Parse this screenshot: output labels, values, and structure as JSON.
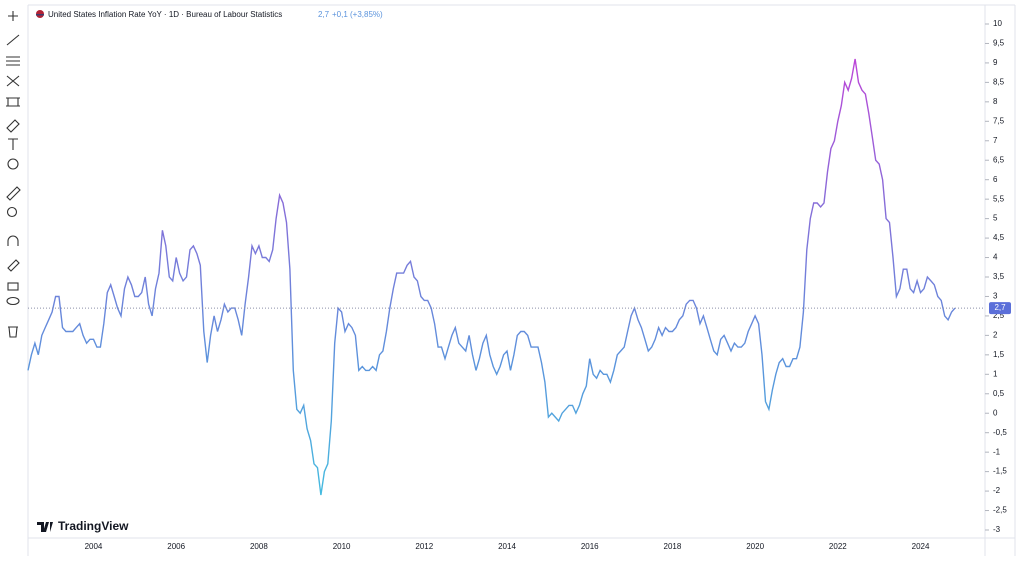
{
  "header": {
    "title": "United States Inflation Rate YoY · 1D · Bureau of Labour Statistics",
    "last": "2,7",
    "change": "+0,1 (+3,85%)"
  },
  "logo": "TradingView",
  "chart_data": {
    "type": "line",
    "categories": [
      null,
      null,
      null,
      null,
      null,
      null,
      null,
      null,
      null,
      null,
      null,
      null,
      null,
      null,
      null,
      null,
      null,
      null,
      null,
      "2004",
      null,
      null,
      null,
      null,
      null,
      null,
      null,
      null,
      null,
      null,
      null,
      null,
      null,
      null,
      null,
      null,
      null,
      null,
      null,
      null,
      null,
      null,
      null,
      "2006",
      null,
      null,
      null,
      null,
      null,
      null,
      null,
      null,
      null,
      null,
      null,
      null,
      null,
      null,
      null,
      null,
      null,
      null,
      null,
      null,
      null,
      null,
      null,
      "2008",
      null,
      null,
      null,
      null,
      null,
      null,
      null,
      null,
      null,
      null,
      null,
      null,
      null,
      null,
      null,
      null,
      null,
      null,
      null,
      null,
      null,
      null,
      null,
      "2010",
      null,
      null,
      null,
      null,
      null,
      null,
      null,
      null,
      null,
      null,
      null,
      null,
      null,
      null,
      null,
      null,
      null,
      null,
      null,
      null,
      null,
      null,
      null,
      "2012",
      null,
      null,
      null,
      null,
      null,
      null,
      null,
      null,
      null,
      null,
      null,
      null,
      null,
      null,
      null,
      null,
      null,
      null,
      null,
      null,
      null,
      null,
      null,
      "2014",
      null,
      null,
      null,
      null,
      null,
      null,
      null,
      null,
      null,
      null,
      null,
      null,
      null,
      null,
      null,
      null,
      null,
      null,
      null,
      null,
      null,
      null,
      null,
      "2016",
      null,
      null,
      null,
      null,
      null,
      null,
      null,
      null,
      null,
      null,
      null,
      null,
      null,
      null,
      null,
      null,
      null,
      null,
      null,
      null,
      null,
      null,
      null,
      "2018",
      null,
      null,
      null,
      null,
      null,
      null,
      null,
      null,
      null,
      null,
      null,
      null,
      null,
      null,
      null,
      null,
      null,
      null,
      null,
      null,
      null,
      null,
      null,
      "2020",
      null,
      null,
      null,
      null,
      null,
      null,
      null,
      null,
      null,
      null,
      null,
      null,
      null,
      null,
      null,
      null,
      null,
      null,
      null,
      null,
      null,
      null,
      null,
      "2022",
      null,
      null,
      null,
      null,
      null,
      null,
      null,
      null,
      null,
      null,
      null,
      null,
      null,
      null,
      null,
      null,
      null,
      null,
      null,
      null,
      null,
      null,
      null,
      "2024",
      null,
      null,
      null,
      null,
      null,
      null,
      null,
      null,
      null,
      null
    ],
    "values": [
      1.1,
      1.5,
      1.8,
      1.5,
      2.0,
      2.2,
      2.4,
      2.6,
      3.0,
      3.0,
      2.2,
      2.1,
      2.1,
      2.1,
      2.2,
      2.3,
      2.0,
      1.8,
      1.9,
      1.9,
      1.7,
      1.7,
      2.3,
      3.1,
      3.3,
      3.0,
      2.7,
      2.5,
      3.2,
      3.5,
      3.3,
      3.0,
      3.0,
      3.1,
      3.5,
      2.8,
      2.5,
      3.2,
      3.6,
      4.7,
      4.3,
      3.5,
      3.4,
      4.0,
      3.6,
      3.4,
      3.5,
      4.2,
      4.3,
      4.1,
      3.8,
      2.1,
      1.3,
      2.0,
      2.5,
      2.1,
      2.4,
      2.8,
      2.6,
      2.7,
      2.7,
      2.4,
      2.0,
      2.8,
      3.5,
      4.3,
      4.1,
      4.3,
      4.0,
      4.0,
      3.9,
      4.2,
      5.0,
      5.6,
      5.4,
      4.9,
      3.7,
      1.1,
      0.1,
      0.0,
      0.2,
      -0.4,
      -0.7,
      -1.3,
      -1.4,
      -2.1,
      -1.5,
      -1.3,
      -0.2,
      1.8,
      2.7,
      2.6,
      2.1,
      2.3,
      2.2,
      2.0,
      1.1,
      1.2,
      1.1,
      1.1,
      1.2,
      1.1,
      1.5,
      1.6,
      2.1,
      2.7,
      3.2,
      3.6,
      3.6,
      3.6,
      3.8,
      3.9,
      3.5,
      3.4,
      3.0,
      2.9,
      2.9,
      2.7,
      2.3,
      1.7,
      1.7,
      1.4,
      1.7,
      2.0,
      2.2,
      1.8,
      1.7,
      1.6,
      2.0,
      1.5,
      1.1,
      1.4,
      1.8,
      2.0,
      1.5,
      1.2,
      1.0,
      1.2,
      1.5,
      1.6,
      1.1,
      1.5,
      2.0,
      2.1,
      2.1,
      2.0,
      1.7,
      1.7,
      1.7,
      1.3,
      0.8,
      -0.1,
      0.0,
      -0.1,
      -0.2,
      0.0,
      0.1,
      0.2,
      0.2,
      0.0,
      0.2,
      0.5,
      0.7,
      1.4,
      1.0,
      0.9,
      1.1,
      1.0,
      1.0,
      0.8,
      1.1,
      1.5,
      1.6,
      1.7,
      2.1,
      2.5,
      2.7,
      2.4,
      2.2,
      1.9,
      1.6,
      1.7,
      1.9,
      2.2,
      2.0,
      2.2,
      2.1,
      2.1,
      2.2,
      2.4,
      2.5,
      2.8,
      2.9,
      2.9,
      2.7,
      2.3,
      2.5,
      2.2,
      1.9,
      1.6,
      1.5,
      1.9,
      2.0,
      1.8,
      1.6,
      1.8,
      1.7,
      1.7,
      1.8,
      2.1,
      2.3,
      2.5,
      2.3,
      1.5,
      0.3,
      0.1,
      0.6,
      1.0,
      1.3,
      1.4,
      1.2,
      1.2,
      1.4,
      1.4,
      1.7,
      2.6,
      4.2,
      5.0,
      5.4,
      5.4,
      5.3,
      5.4,
      6.2,
      6.8,
      7.0,
      7.5,
      7.9,
      8.5,
      8.3,
      8.6,
      9.1,
      8.5,
      8.3,
      8.2,
      7.7,
      7.1,
      6.5,
      6.4,
      6.0,
      5.0,
      4.9,
      4.0,
      3.0,
      3.2,
      3.7,
      3.7,
      3.2,
      3.1,
      3.4,
      3.1,
      3.2,
      3.5,
      3.4,
      3.3,
      3.0,
      2.9,
      2.5,
      2.4,
      2.6,
      2.7
    ],
    "last_value_label": "2,7",
    "line_gradient": [
      "#3fc6e0",
      "#5b93dc",
      "#8a6ad8",
      "#c93cd8"
    ],
    "ylim": [
      -3,
      10
    ],
    "yticks": [
      10,
      {
        "value": 9.5,
        "label": "9,5"
      },
      9,
      {
        "value": 8.5,
        "label": "8,5"
      },
      8,
      {
        "value": 7.5,
        "label": "7,5"
      },
      7,
      {
        "value": 6.5,
        "label": "6,5"
      },
      6,
      {
        "value": 5.5,
        "label": "5,5"
      },
      5,
      {
        "value": 4.5,
        "label": "4,5"
      },
      4,
      {
        "value": 3.5,
        "label": "3,5"
      },
      3,
      {
        "value": 2.5,
        "label": "2,5"
      },
      2,
      {
        "value": 1.5,
        "label": "1,5"
      },
      1,
      {
        "value": 0.5,
        "label": "0,5"
      },
      0,
      {
        "value": -0.5,
        "label": "-0,5"
      },
      -1,
      {
        "value": -1.5,
        "label": "-1,5"
      },
      -2,
      {
        "value": -2.5,
        "label": "-2,5"
      },
      -3
    ]
  }
}
